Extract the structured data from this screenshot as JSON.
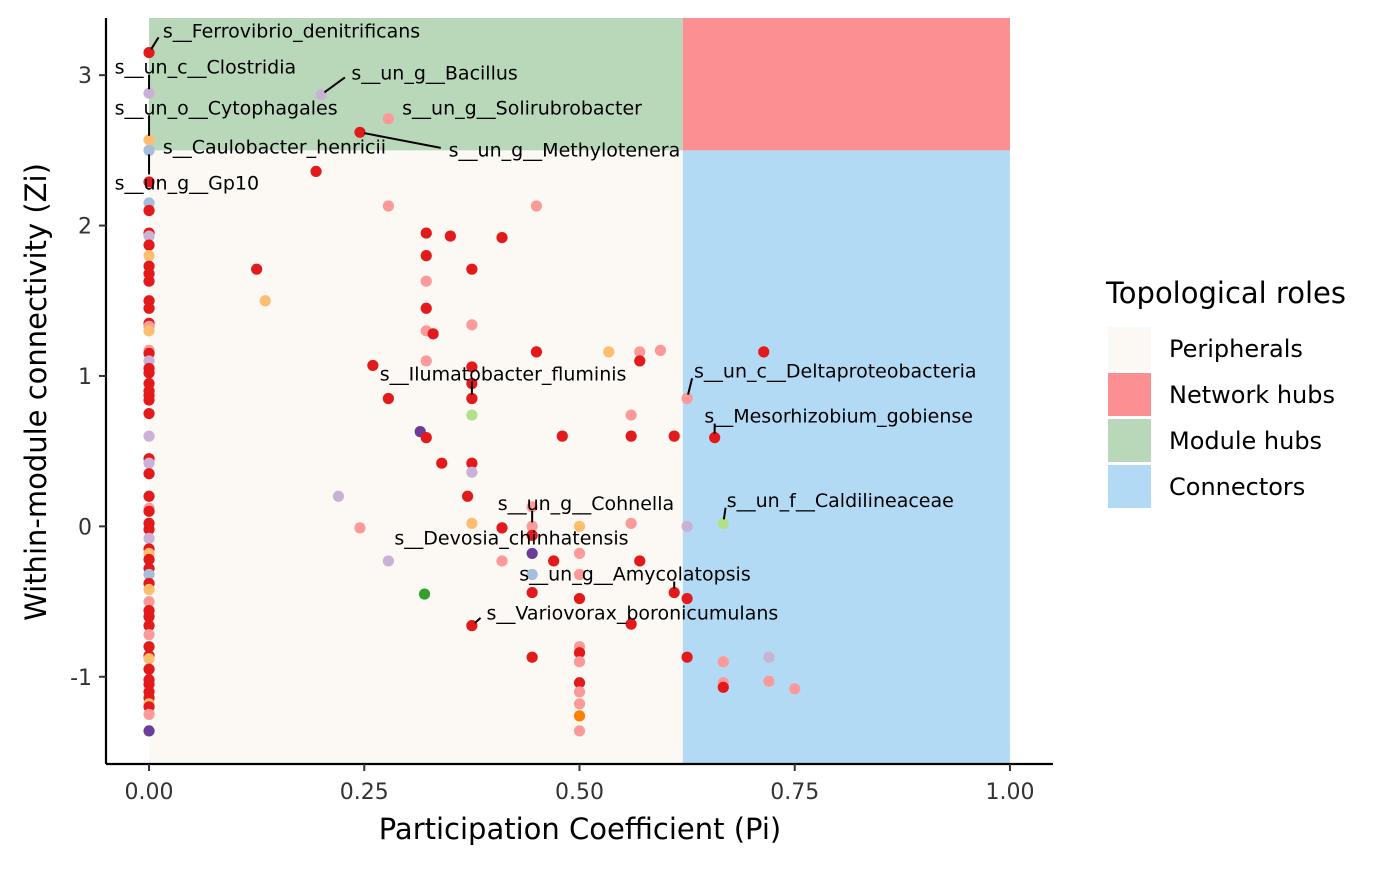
{
  "chart_data": {
    "type": "scatter",
    "xlabel": "Participation Coefficient (Pi)",
    "ylabel": "Within-module connectivity (Zi)",
    "xlim": [
      -0.05,
      1.05
    ],
    "ylim": [
      -1.58,
      3.38
    ],
    "x_ticks": [
      0,
      0.25,
      0.5,
      0.75,
      1
    ],
    "x_tick_labels": [
      "0.00",
      "0.25",
      "0.50",
      "0.75",
      "1.00"
    ],
    "y_ticks": [
      -1,
      0,
      1,
      2,
      3
    ],
    "y_tick_labels": [
      "-1",
      "0",
      "1",
      "2",
      "3"
    ],
    "grid": false,
    "legend": {
      "title": "Topological roles",
      "placement": "right",
      "items": [
        {
          "label": "Peripherals",
          "color": "#FCF8F3"
        },
        {
          "label": "Network hubs",
          "color": "#FB8F91"
        },
        {
          "label": "Module hubs",
          "color": "#B8D8B9"
        },
        {
          "label": "Connectors",
          "color": "#B3DAF4"
        }
      ]
    },
    "regions": [
      {
        "role": "Peripherals",
        "x": [
          0,
          0.62
        ],
        "y": [
          -1.58,
          2.5
        ],
        "color": "#FCF8F3"
      },
      {
        "role": "Connectors",
        "x": [
          0.62,
          1.0
        ],
        "y": [
          -1.58,
          2.5
        ],
        "color": "#B3DAF4"
      },
      {
        "role": "Module hubs",
        "x": [
          0,
          0.62
        ],
        "y": [
          2.5,
          3.38
        ],
        "color": "#B8D8B9"
      },
      {
        "role": "Network hubs",
        "x": [
          0.62,
          1.0
        ],
        "y": [
          2.5,
          3.38
        ],
        "color": "#FB8F91"
      }
    ],
    "point_colors": {
      "r": "#E31A1C",
      "p": "#FB9A99",
      "o": "#FDBF6F",
      "O": "#FF7F00",
      "l": "#CAB2D6",
      "v": "#6A3D9A",
      "b": "#A6BDDB",
      "g": "#B2DF8A",
      "G": "#33A02C"
    },
    "points": [
      [
        0,
        3.15,
        "r"
      ],
      [
        0,
        2.88,
        "l"
      ],
      [
        0,
        2.57,
        "o"
      ],
      [
        0,
        2.5,
        "b"
      ],
      [
        0,
        2.29,
        "r"
      ],
      [
        0,
        2.15,
        "b"
      ],
      [
        0,
        2.1,
        "r"
      ],
      [
        0,
        1.95,
        "r"
      ],
      [
        0,
        1.93,
        "l"
      ],
      [
        0,
        1.87,
        "r"
      ],
      [
        0,
        1.8,
        "o"
      ],
      [
        0,
        1.73,
        "r"
      ],
      [
        0,
        1.68,
        "r"
      ],
      [
        0,
        1.63,
        "r"
      ],
      [
        0,
        1.5,
        "r"
      ],
      [
        0,
        1.45,
        "r"
      ],
      [
        0,
        1.35,
        "r"
      ],
      [
        0,
        1.33,
        "p"
      ],
      [
        0,
        1.3,
        "o"
      ],
      [
        0,
        1.17,
        "p"
      ],
      [
        0,
        1.15,
        "r"
      ],
      [
        0,
        1.1,
        "l"
      ],
      [
        0,
        1.05,
        "r"
      ],
      [
        0,
        1.02,
        "r"
      ],
      [
        0,
        0.95,
        "r"
      ],
      [
        0,
        0.9,
        "r"
      ],
      [
        0,
        0.87,
        "r"
      ],
      [
        0,
        0.84,
        "r"
      ],
      [
        0,
        0.75,
        "r"
      ],
      [
        0,
        0.6,
        "l"
      ],
      [
        0,
        0.45,
        "r"
      ],
      [
        0,
        0.42,
        "l"
      ],
      [
        0,
        0.35,
        "r"
      ],
      [
        0,
        0.2,
        "r"
      ],
      [
        0,
        0.12,
        "p"
      ],
      [
        0,
        0.1,
        "r"
      ],
      [
        0,
        0.02,
        "r"
      ],
      [
        0,
        -0.02,
        "r"
      ],
      [
        0,
        -0.08,
        "l"
      ],
      [
        0,
        -0.15,
        "r"
      ],
      [
        0,
        -0.18,
        "o"
      ],
      [
        0,
        -0.22,
        "r"
      ],
      [
        0,
        -0.28,
        "r"
      ],
      [
        0,
        -0.32,
        "b"
      ],
      [
        0,
        -0.38,
        "r"
      ],
      [
        0,
        -0.42,
        "o"
      ],
      [
        0,
        -0.5,
        "p"
      ],
      [
        0,
        -0.56,
        "r"
      ],
      [
        0,
        -0.6,
        "r"
      ],
      [
        0,
        -0.66,
        "r"
      ],
      [
        0,
        -0.72,
        "p"
      ],
      [
        0,
        -0.8,
        "r"
      ],
      [
        0,
        -0.86,
        "r"
      ],
      [
        0,
        -0.88,
        "o"
      ],
      [
        0,
        -0.95,
        "r"
      ],
      [
        0,
        -1.02,
        "r"
      ],
      [
        0,
        -1.05,
        "r"
      ],
      [
        0,
        -1.1,
        "r"
      ],
      [
        0,
        -1.14,
        "r"
      ],
      [
        0,
        -1.18,
        "o"
      ],
      [
        0,
        -1.2,
        "r"
      ],
      [
        0,
        -1.25,
        "p"
      ],
      [
        0,
        -1.36,
        "v"
      ],
      [
        0.125,
        1.71,
        "r"
      ],
      [
        0.135,
        1.5,
        "o"
      ],
      [
        0.194,
        2.36,
        "r"
      ],
      [
        0.2,
        2.87,
        "l"
      ],
      [
        0.22,
        0.2,
        "l"
      ],
      [
        0.245,
        2.62,
        "r"
      ],
      [
        0.245,
        -0.01,
        "p"
      ],
      [
        0.26,
        1.07,
        "r"
      ],
      [
        0.278,
        2.13,
        "p"
      ],
      [
        0.278,
        0.85,
        "r"
      ],
      [
        0.278,
        -0.23,
        "l"
      ],
      [
        0.278,
        2.71,
        "p"
      ],
      [
        0.315,
        0.63,
        "v"
      ],
      [
        0.32,
        -0.45,
        "G"
      ],
      [
        0.322,
        1.95,
        "r"
      ],
      [
        0.322,
        1.8,
        "r"
      ],
      [
        0.322,
        1.63,
        "p"
      ],
      [
        0.322,
        1.45,
        "r"
      ],
      [
        0.322,
        1.3,
        "p"
      ],
      [
        0.322,
        1.1,
        "p"
      ],
      [
        0.322,
        0.59,
        "r"
      ],
      [
        0.33,
        1.28,
        "r"
      ],
      [
        0.34,
        0.42,
        "r"
      ],
      [
        0.35,
        1.93,
        "r"
      ],
      [
        0.37,
        0.2,
        "r"
      ],
      [
        0.375,
        1.71,
        "r"
      ],
      [
        0.375,
        1.34,
        "p"
      ],
      [
        0.375,
        1.06,
        "r"
      ],
      [
        0.375,
        0.95,
        "r"
      ],
      [
        0.375,
        0.85,
        "r"
      ],
      [
        0.375,
        0.74,
        "g"
      ],
      [
        0.375,
        0.42,
        "r"
      ],
      [
        0.375,
        0.36,
        "l"
      ],
      [
        0.375,
        0.02,
        "o"
      ],
      [
        0.375,
        -0.66,
        "r"
      ],
      [
        0.41,
        1.92,
        "r"
      ],
      [
        0.41,
        -0.01,
        "r"
      ],
      [
        0.41,
        -0.23,
        "p"
      ],
      [
        0.445,
        0.13,
        "p"
      ],
      [
        0.445,
        0.0,
        "p"
      ],
      [
        0.445,
        -0.06,
        "r"
      ],
      [
        0.445,
        -0.18,
        "v"
      ],
      [
        0.445,
        -0.32,
        "b"
      ],
      [
        0.445,
        -0.44,
        "r"
      ],
      [
        0.445,
        -0.87,
        "r"
      ],
      [
        0.45,
        2.13,
        "p"
      ],
      [
        0.45,
        1.16,
        "r"
      ],
      [
        0.47,
        -0.23,
        "r"
      ],
      [
        0.48,
        0.6,
        "r"
      ],
      [
        0.5,
        0.0,
        "o"
      ],
      [
        0.5,
        -0.18,
        "p"
      ],
      [
        0.5,
        -0.32,
        "p"
      ],
      [
        0.5,
        -0.48,
        "r"
      ],
      [
        0.5,
        -0.8,
        "p"
      ],
      [
        0.5,
        -0.84,
        "r"
      ],
      [
        0.5,
        -0.9,
        "p"
      ],
      [
        0.5,
        -1.04,
        "r"
      ],
      [
        0.5,
        -1.1,
        "p"
      ],
      [
        0.5,
        -1.18,
        "p"
      ],
      [
        0.5,
        -1.26,
        "O"
      ],
      [
        0.5,
        -1.36,
        "p"
      ],
      [
        0.534,
        1.16,
        "o"
      ],
      [
        0.56,
        0.74,
        "p"
      ],
      [
        0.56,
        0.6,
        "r"
      ],
      [
        0.56,
        0.02,
        "p"
      ],
      [
        0.56,
        -0.65,
        "r"
      ],
      [
        0.57,
        1.16,
        "p"
      ],
      [
        0.57,
        1.1,
        "r"
      ],
      [
        0.57,
        -0.23,
        "r"
      ],
      [
        0.594,
        1.17,
        "p"
      ],
      [
        0.61,
        0.6,
        "r"
      ],
      [
        0.61,
        -0.44,
        "r"
      ],
      [
        0.625,
        0.85,
        "p"
      ],
      [
        0.625,
        0.0,
        "l"
      ],
      [
        0.625,
        -0.48,
        "r"
      ],
      [
        0.625,
        -0.87,
        "r"
      ],
      [
        0.657,
        0.59,
        "r"
      ],
      [
        0.667,
        0.02,
        "g"
      ],
      [
        0.667,
        -0.9,
        "p"
      ],
      [
        0.667,
        -1.04,
        "p"
      ],
      [
        0.667,
        -1.07,
        "r"
      ],
      [
        0.714,
        1.16,
        "r"
      ],
      [
        0.72,
        -0.87,
        "l"
      ],
      [
        0.72,
        -1.03,
        "p"
      ],
      [
        0.75,
        -1.08,
        "p"
      ]
    ],
    "annotations": [
      {
        "text": "s__Ferrovibrio_denitrificans",
        "x": 0.0,
        "y": 3.15,
        "tx": 0.016,
        "ty": 3.25
      },
      {
        "text": "s__un_c__Clostridia",
        "x": 0.0,
        "y": 2.88,
        "tx": -0.04,
        "ty": 3.01
      },
      {
        "text": "s__un_g__Bacillus",
        "x": 0.2,
        "y": 2.87,
        "tx": 0.235,
        "ty": 2.97
      },
      {
        "text": "s__un_o__Cytophagales",
        "x": 0.0,
        "y": 2.57,
        "tx": -0.04,
        "ty": 2.74
      },
      {
        "text": "s__un_g__Solirubrobacter",
        "x": 0.278,
        "y": 2.71,
        "tx": 0.294,
        "ty": 2.74
      },
      {
        "text": "s__Caulobacter_henricii",
        "x": 0.0,
        "y": 2.5,
        "tx": 0.016,
        "ty": 2.48
      },
      {
        "text": "s__un_g__Methylotenera",
        "x": 0.245,
        "y": 2.62,
        "tx": 0.348,
        "ty": 2.46
      },
      {
        "text": "s__un_g__Gp10",
        "x": 0.0,
        "y": 2.5,
        "tx": -0.04,
        "ty": 2.24
      },
      {
        "text": "s__Ilumatobacter_fluminis",
        "x": 0.375,
        "y": 0.85,
        "tx": 0.268,
        "ty": 0.97
      },
      {
        "text": "s__un_c__Deltaproteobacteria",
        "x": 0.625,
        "y": 0.85,
        "tx": 0.633,
        "ty": 0.99
      },
      {
        "text": "s__Mesorhizobium_gobiense",
        "x": 0.657,
        "y": 0.59,
        "tx": 0.645,
        "ty": 0.69
      },
      {
        "text": "s__un_g__Cohnella",
        "x": 0.445,
        "y": 0.0,
        "tx": 0.405,
        "ty": 0.11
      },
      {
        "text": "s__un_f__Caldilineaceae",
        "x": 0.667,
        "y": 0.02,
        "tx": 0.671,
        "ty": 0.13
      },
      {
        "text": "s__Devosia_chinhatensis",
        "x": 0.445,
        "y": -0.18,
        "tx": 0.285,
        "ty": -0.12
      },
      {
        "text": "s__un_g__Amycolatopsis",
        "x": 0.61,
        "y": -0.44,
        "tx": 0.43,
        "ty": -0.36
      },
      {
        "text": "s__Variovorax_boronicumulans",
        "x": 0.375,
        "y": -0.66,
        "tx": 0.392,
        "ty": -0.62
      }
    ]
  }
}
